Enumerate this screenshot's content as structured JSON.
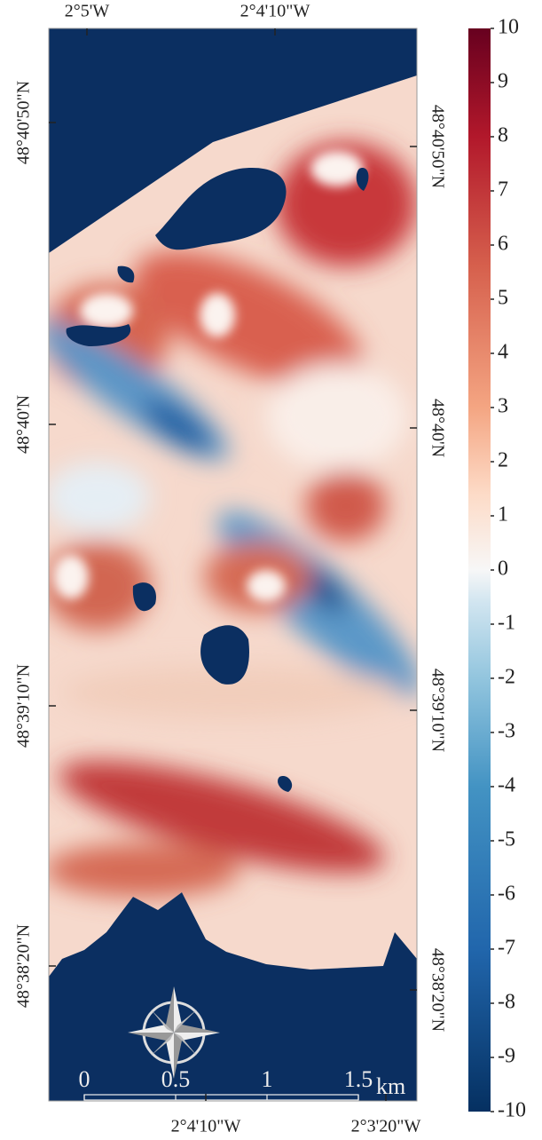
{
  "map": {
    "top_labels": [
      "2°5'W",
      "2°4'10\"W"
    ],
    "bottom_labels": [
      "2°4'10\"W",
      "2°3'20\"W"
    ],
    "left_labels": [
      "48°40'50\"N",
      "48°40'N",
      "48°39'10\"N",
      "48°38'20\"N"
    ],
    "right_labels": [
      "48°40'50\"N",
      "48°40'N",
      "48°39'10\"N",
      "48°38'20\"N"
    ],
    "scale_bar": {
      "ticks": [
        0,
        0.5,
        1,
        1.5
      ],
      "unit": "km"
    }
  },
  "colorbar": {
    "lim": [
      -10,
      10
    ],
    "ticks": [
      -10,
      -9,
      -8,
      -7,
      -6,
      -5,
      -4,
      -3,
      -2,
      -1,
      0,
      1,
      2,
      3,
      4,
      5,
      6,
      7,
      8,
      9,
      10
    ]
  }
}
